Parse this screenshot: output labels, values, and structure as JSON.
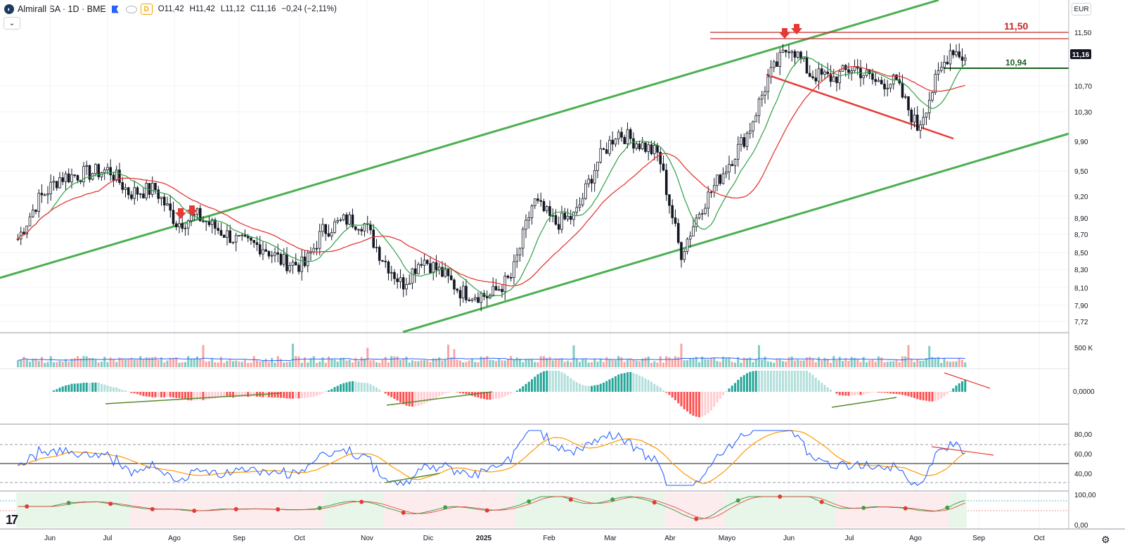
{
  "header": {
    "symbol": "Almirall SA · 1D · BME",
    "open": "O11,42",
    "high": "H11,42",
    "low": "L11,12",
    "close": "C11,16",
    "change": "−0,24 (−2,11%)",
    "interval_badge": "D"
  },
  "currency": "EUR",
  "last_price_label": "11,16",
  "annotations": {
    "resistance": "11,50",
    "support": "10,94"
  },
  "price_axis_ticks": [
    "11,50",
    "10,70",
    "10,30",
    "9,90",
    "9,50",
    "9,20",
    "8,90",
    "8,70",
    "8,50",
    "8,30",
    "8,10",
    "7,90",
    "7,72"
  ],
  "volume_axis_label": "500 K",
  "macd_axis_label": "0,0000",
  "rsi_axis_ticks": [
    "80,00",
    "60,00",
    "40,00"
  ],
  "osc_axis_ticks": [
    "100,00",
    "0,00"
  ],
  "time_labels": [
    "Jun",
    "Jul",
    "Ago",
    "Sep",
    "Oct",
    "Nov",
    "Dic",
    "2025",
    "Feb",
    "Mar",
    "Abr",
    "Mayo",
    "Jun",
    "Jul",
    "Ago",
    "Sep",
    "Oct"
  ],
  "colors": {
    "up": "#26a69a",
    "down": "#ef5350",
    "ma_fast": "#2ea043",
    "ma_slow": "#e53935",
    "channel": "#4caf50",
    "rsi": "#2962ff",
    "rsi_ma": "#ff9800"
  },
  "icons": {
    "logo": "company-logo-icon",
    "flag": "flag-icon",
    "visibility": "eye-icon",
    "collapse": "chevron-down-icon",
    "settings": "gear-icon",
    "brand": "tradingview-logo-icon"
  },
  "chart_data": {
    "type": "line",
    "title": "Almirall SA · 1D · BME",
    "ylabel": "",
    "ylim": [
      7.6,
      11.7
    ],
    "x": [
      "2024-05-10",
      "2024-05-20",
      "2024-05-31",
      "2024-06-12",
      "2024-06-25",
      "2024-07-05",
      "2024-07-18",
      "2024-07-29",
      "2024-08-08",
      "2024-08-20",
      "2024-08-30",
      "2024-09-10",
      "2024-09-20",
      "2024-10-01",
      "2024-10-10",
      "2024-10-22",
      "2024-10-31",
      "2024-11-08",
      "2024-11-19",
      "2024-11-29",
      "2024-12-09",
      "2024-12-19",
      "2025-01-02",
      "2025-01-13",
      "2025-01-24",
      "2025-02-04",
      "2025-02-14",
      "2025-02-25",
      "2025-03-07",
      "2025-03-18",
      "2025-03-28",
      "2025-04-08",
      "2025-04-18",
      "2025-04-30",
      "2025-05-12",
      "2025-05-22",
      "2025-06-02",
      "2025-06-12",
      "2025-06-24",
      "2025-07-04",
      "2025-07-15",
      "2025-07-25",
      "2025-08-05",
      "2025-08-14",
      "2025-08-22",
      "2025-08-29"
    ],
    "series": [
      {
        "values": [
          8.8,
          9.3,
          9.6,
          9.65,
          9.7,
          9.4,
          9.45,
          9.0,
          9.1,
          8.9,
          8.75,
          8.7,
          8.5,
          8.45,
          8.9,
          9.05,
          9.0,
          8.6,
          8.2,
          8.55,
          8.35,
          8.1,
          8.05,
          8.3,
          9.3,
          9.0,
          9.1,
          9.8,
          10.2,
          10.05,
          9.9,
          8.6,
          9.2,
          9.7,
          10.2,
          10.9,
          11.35,
          10.95,
          10.9,
          11.05,
          10.85,
          10.85,
          10.25,
          10.85,
          11.3,
          11.16
        ]
      }
    ],
    "levels": [
      {
        "label": "11,50",
        "value": 11.5
      },
      {
        "label": "10,94",
        "value": 10.94
      }
    ],
    "xlim": [
      "2024-05-01",
      "2025-10-20"
    ]
  }
}
